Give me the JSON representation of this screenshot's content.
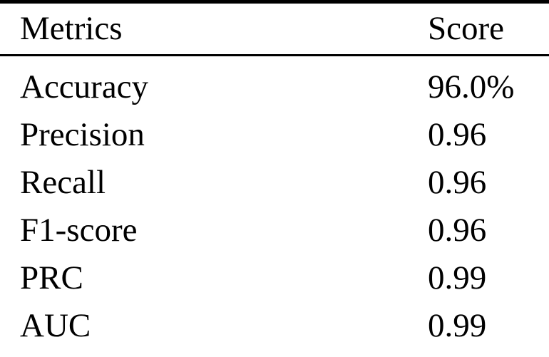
{
  "table": {
    "columns": [
      {
        "label": "Metrics"
      },
      {
        "label": "Score"
      }
    ],
    "rows": [
      {
        "metric": "Accuracy",
        "score": "96.0%"
      },
      {
        "metric": "Precision",
        "score": "0.96"
      },
      {
        "metric": "Recall",
        "score": "0.96"
      },
      {
        "metric": "F1-score",
        "score": "0.96"
      },
      {
        "metric": "PRC",
        "score": "0.99"
      },
      {
        "metric": "AUC",
        "score": "0.99"
      }
    ],
    "colors": {
      "text": "#000000",
      "background": "#ffffff",
      "rule": "#000000"
    }
  },
  "chart_data": {
    "type": "table",
    "title": "",
    "columns": [
      "Metrics",
      "Score"
    ],
    "rows": [
      [
        "Accuracy",
        "96.0%"
      ],
      [
        "Precision",
        "0.96"
      ],
      [
        "Recall",
        "0.96"
      ],
      [
        "F1-score",
        "0.96"
      ],
      [
        "PRC",
        "0.99"
      ],
      [
        "AUC",
        "0.99"
      ]
    ]
  }
}
